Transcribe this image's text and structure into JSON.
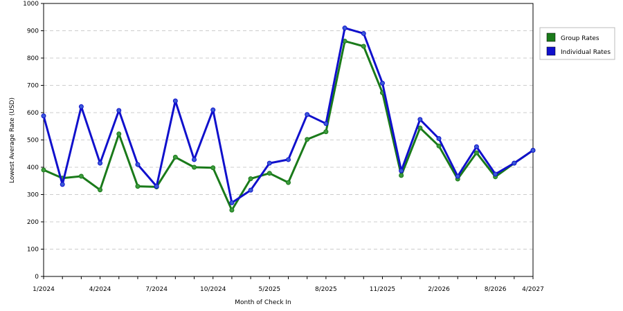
{
  "chart_data": {
    "type": "line",
    "x_label": "Month of Check In",
    "y_label": "Lowest Average Rate (USD)",
    "categories": [
      "1/2024",
      null,
      null,
      "4/2024",
      null,
      null,
      "7/2024",
      null,
      null,
      "10/2024",
      null,
      null,
      "5/2025",
      null,
      null,
      "8/2025",
      null,
      null,
      "11/2025",
      null,
      null,
      "2/2026",
      null,
      null,
      "8/2026",
      null,
      "4/2027"
    ],
    "series": [
      {
        "name": "Group Rates",
        "color": "#1a7a1a",
        "marker_color": "#3c9a3c",
        "values": [
          390,
          360,
          367,
          317,
          522,
          330,
          328,
          437,
          400,
          398,
          243,
          358,
          378,
          344,
          502,
          530,
          862,
          843,
          673,
          370,
          544,
          478,
          357,
          453,
          365,
          415,
          462
        ]
      },
      {
        "name": "Individual Rates",
        "color": "#1010cc",
        "marker_color": "#3a5ad8",
        "values": [
          588,
          337,
          622,
          415,
          608,
          410,
          330,
          643,
          428,
          610,
          270,
          316,
          415,
          428,
          593,
          560,
          910,
          890,
          708,
          387,
          575,
          505,
          367,
          475,
          375,
          415,
          462
        ]
      }
    ],
    "ylim": [
      0,
      1000
    ],
    "yticks": [
      0,
      100,
      200,
      300,
      400,
      500,
      600,
      700,
      800,
      900,
      1000
    ],
    "grid": true,
    "legend": "right"
  }
}
